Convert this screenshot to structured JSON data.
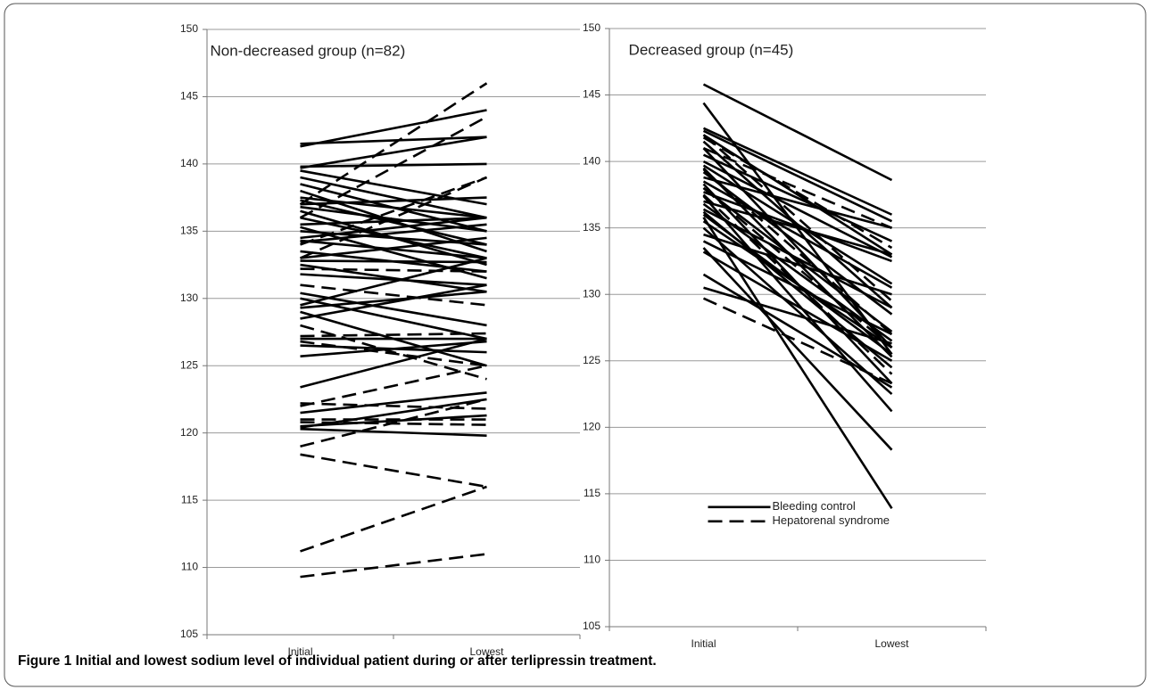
{
  "chart_data": [
    {
      "type": "line",
      "title": "Non-decreased group (n=82)",
      "categories": [
        "Initial",
        "Lowest"
      ],
      "ylim": [
        105,
        150
      ],
      "yticks": [
        105,
        110,
        115,
        120,
        125,
        130,
        135,
        140,
        145,
        150
      ],
      "grid": true,
      "series": [
        {
          "dash": false,
          "color": "#000000",
          "values": [
            [
              141.5,
              142
            ],
            [
              141.3,
              144
            ],
            [
              139.8,
              140
            ],
            [
              139.7,
              142
            ],
            [
              139.5,
              137
            ],
            [
              139,
              136
            ],
            [
              138.5,
              135
            ],
            [
              138,
              133.5
            ],
            [
              137.5,
              136
            ],
            [
              137.3,
              134
            ],
            [
              137,
              137.5
            ],
            [
              136.8,
              135
            ],
            [
              136.5,
              132.5
            ],
            [
              136,
              133
            ],
            [
              135.5,
              136
            ],
            [
              135.3,
              131.5
            ],
            [
              135,
              134
            ],
            [
              134.5,
              136
            ],
            [
              134.3,
              133
            ],
            [
              134.2,
              135.5
            ],
            [
              133.5,
              132
            ],
            [
              133,
              134.5
            ],
            [
              132.8,
              132.7
            ],
            [
              132.5,
              130.5
            ],
            [
              131.8,
              131
            ],
            [
              130.4,
              128
            ],
            [
              130,
              127
            ],
            [
              129.5,
              133
            ],
            [
              129.3,
              130.5
            ],
            [
              129,
              125
            ],
            [
              128.5,
              131
            ],
            [
              127,
              127
            ],
            [
              126.5,
              126
            ],
            [
              125.7,
              126.8
            ],
            [
              123.4,
              127
            ],
            [
              121.5,
              123
            ],
            [
              120.5,
              121.3
            ],
            [
              120.3,
              119.8
            ],
            [
              120.4,
              122.5
            ]
          ]
        },
        {
          "dash": true,
          "color": "#000000",
          "values": [
            [
              137,
              146
            ],
            [
              136,
              143.5
            ],
            [
              134,
              139
            ],
            [
              133,
              139
            ],
            [
              132.2,
              132
            ],
            [
              131,
              129.5
            ],
            [
              128,
              124
            ],
            [
              127.2,
              127.4
            ],
            [
              126.8,
              125
            ],
            [
              122,
              125
            ],
            [
              122.2,
              121.8
            ],
            [
              121,
              121
            ],
            [
              120.8,
              120.6
            ],
            [
              119,
              122.5
            ],
            [
              118.4,
              116
            ],
            [
              111.2,
              116
            ],
            [
              109.3,
              111
            ]
          ]
        }
      ]
    },
    {
      "type": "line",
      "title": "Decreased group (n=45)",
      "categories": [
        "Initial",
        "Lowest"
      ],
      "ylim": [
        105,
        150
      ],
      "yticks": [
        105,
        110,
        115,
        120,
        125,
        130,
        135,
        140,
        145,
        150
      ],
      "grid": true,
      "legend": "lower center",
      "series": [
        {
          "name": "Bleeding control",
          "dash": false,
          "color": "#000000",
          "values": [
            [
              145.8,
              138.6
            ],
            [
              144.4,
              125.5
            ],
            [
              142.5,
              136
            ],
            [
              142.3,
              135.5
            ],
            [
              142,
              133
            ],
            [
              141.5,
              129
            ],
            [
              141,
              126
            ],
            [
              140.5,
              134
            ],
            [
              140,
              132.8
            ],
            [
              139.7,
              130.8
            ],
            [
              139.5,
              125.3
            ],
            [
              139.2,
              128.5
            ],
            [
              138.8,
              135
            ],
            [
              138.5,
              130.5
            ],
            [
              138.3,
              123.3
            ],
            [
              138,
              127.2
            ],
            [
              137.7,
              132.5
            ],
            [
              137.4,
              121.2
            ],
            [
              137,
              133
            ],
            [
              136.8,
              126.5
            ],
            [
              136.4,
              129
            ],
            [
              136.2,
              124.5
            ],
            [
              136,
              125.5
            ],
            [
              135.8,
              113.9
            ],
            [
              135.5,
              126
            ],
            [
              135,
              122.5
            ],
            [
              134.5,
              130
            ],
            [
              134,
              127
            ],
            [
              133.5,
              118.3
            ],
            [
              133.2,
              125
            ],
            [
              131.5,
              123
            ],
            [
              130.5,
              126.3
            ]
          ]
        },
        {
          "name": "Hepatorenal syndrome",
          "dash": true,
          "color": "#000000",
          "values": [
            [
              142,
              129.5
            ],
            [
              141.8,
              133.5
            ],
            [
              141,
              135
            ],
            [
              139.4,
              127
            ],
            [
              138,
              126
            ],
            [
              137.5,
              124
            ],
            [
              129.7,
              123.3
            ]
          ]
        }
      ]
    }
  ],
  "caption": "Figure 1 Initial and lowest sodium level of individual patient during or after terlipressin treatment."
}
